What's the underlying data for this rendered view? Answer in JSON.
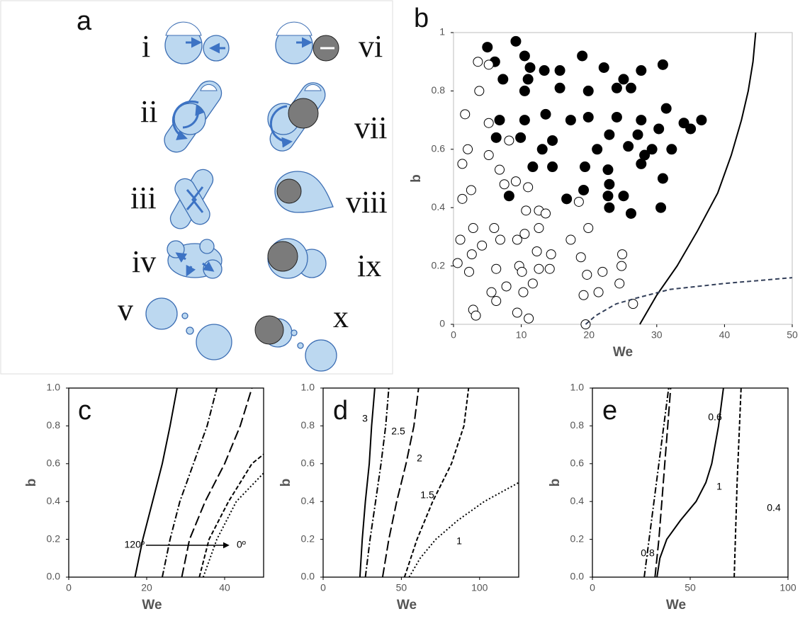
{
  "panel_a": {
    "label": "a",
    "items": [
      "i",
      "vi",
      "ii",
      "vii",
      "iii",
      "viii",
      "iv",
      "ix",
      "v",
      "x"
    ]
  },
  "chart_data": [
    {
      "type": "scatter",
      "panel": "b",
      "xlabel": "We",
      "ylabel": "b",
      "xlim": [
        0,
        50
      ],
      "xticks": [
        0,
        10,
        20,
        30,
        40,
        50
      ],
      "ylim": [
        0,
        1
      ],
      "yticks": [
        0,
        0.2,
        0.4,
        0.6,
        0.8,
        1
      ],
      "series": [
        {
          "marker": "filled",
          "color": "#000000",
          "x": [
            5.0,
            9.2,
            6.1,
            10.5,
            11.3,
            13.4,
            15.7,
            19.0,
            22.2,
            25.1,
            27.7,
            30.9,
            7.3,
            11.0,
            15.7,
            10.5,
            19.9,
            24.1,
            26.2,
            31.4,
            34.0,
            36.6,
            6.8,
            10.5,
            13.6,
            17.3,
            19.9,
            24.1,
            27.7,
            30.3,
            35.0,
            6.3,
            9.9,
            14.6,
            23.0,
            27.2,
            29.3,
            32.2,
            13.1,
            21.2,
            25.8,
            28.2,
            11.7,
            14.6,
            19.4,
            22.8,
            27.7,
            30.9,
            23.0,
            25.1,
            8.2,
            16.7,
            19.2,
            22.8,
            23.0,
            26.2,
            30.6
          ],
          "values": [
            0.95,
            0.97,
            0.9,
            0.92,
            0.88,
            0.87,
            0.87,
            0.92,
            0.88,
            0.84,
            0.87,
            0.89,
            0.84,
            0.84,
            0.81,
            0.8,
            0.8,
            0.81,
            0.81,
            0.74,
            0.69,
            0.7,
            0.7,
            0.7,
            0.72,
            0.7,
            0.71,
            0.71,
            0.7,
            0.67,
            0.67,
            0.64,
            0.64,
            0.63,
            0.65,
            0.65,
            0.6,
            0.6,
            0.6,
            0.6,
            0.61,
            0.58,
            0.54,
            0.54,
            0.54,
            0.53,
            0.55,
            0.5,
            0.48,
            0.44,
            0.44,
            0.43,
            0.46,
            0.44,
            0.4,
            0.38,
            0.4
          ]
        },
        {
          "marker": "open",
          "color": "#000000",
          "x": [
            3.6,
            5.2,
            3.8,
            1.7,
            5.2,
            2.1,
            1.3,
            5.2,
            6.8,
            8.2,
            1.3,
            2.6,
            7.5,
            9.2,
            11.0,
            10.7,
            12.6,
            13.6,
            18.5,
            19.9,
            12.6,
            10.5,
            9.4,
            6.0,
            2.9,
            1.0,
            4.2,
            2.7,
            6.9,
            12.3,
            14.4,
            17.3,
            14.2,
            12.6,
            9.7,
            10.1,
            7.8,
            10.3,
            0.6,
            2.3,
            6.3,
            11.7,
            18.8,
            22.0,
            24.9,
            24.8,
            19.7,
            19.2,
            21.4,
            24.5,
            5.6,
            6.3,
            2.9,
            3.3,
            9.4,
            11.1,
            26.5,
            19.5
          ],
          "values": [
            0.9,
            0.89,
            0.8,
            0.72,
            0.69,
            0.6,
            0.55,
            0.58,
            0.53,
            0.63,
            0.43,
            0.46,
            0.48,
            0.49,
            0.47,
            0.39,
            0.39,
            0.38,
            0.42,
            0.33,
            0.33,
            0.31,
            0.29,
            0.33,
            0.33,
            0.29,
            0.27,
            0.24,
            0.29,
            0.25,
            0.24,
            0.29,
            0.19,
            0.19,
            0.2,
            0.18,
            0.13,
            0.11,
            0.21,
            0.18,
            0.19,
            0.14,
            0.23,
            0.18,
            0.24,
            0.2,
            0.17,
            0.1,
            0.11,
            0.14,
            0.11,
            0.08,
            0.05,
            0.03,
            0.04,
            0.02,
            0.07,
            0.0
          ]
        },
        {
          "style": "solid",
          "color": "#000000",
          "x": [
            27.5,
            30,
            33,
            36,
            39,
            41,
            42.5,
            43.5,
            44.2,
            44.6
          ],
          "values": [
            0,
            0.1,
            0.2,
            0.32,
            0.45,
            0.58,
            0.7,
            0.8,
            0.9,
            1.0
          ]
        },
        {
          "style": "dashed",
          "color": "#34405a",
          "x": [
            19.5,
            21,
            24,
            27,
            32,
            40,
            50
          ],
          "values": [
            0,
            0.03,
            0.07,
            0.09,
            0.12,
            0.14,
            0.16
          ]
        }
      ]
    },
    {
      "type": "line",
      "panel": "c",
      "xlabel": "We",
      "ylabel": "b",
      "xlim": [
        0,
        50
      ],
      "xticks": [
        0,
        20,
        40
      ],
      "ylim": [
        0,
        1
      ],
      "yticks": [
        {
          "value": 0,
          "label": "0.0"
        },
        {
          "value": 0.2,
          "label": "0.2"
        },
        {
          "value": 0.4,
          "label": "0.4"
        },
        {
          "value": 0.6,
          "label": "0.6"
        },
        {
          "value": 0.8,
          "label": "0.8"
        },
        {
          "value": 1,
          "label": "1.0"
        }
      ],
      "annotations": [
        "120º",
        "0º"
      ],
      "series": [
        {
          "style": "solid",
          "color": "#000000",
          "x": [
            17,
            19,
            21.5,
            24,
            26,
            27.8
          ],
          "values": [
            0,
            0.2,
            0.4,
            0.6,
            0.8,
            1.0
          ]
        },
        {
          "style": "dash-dot",
          "color": "#000000",
          "x": [
            24,
            26,
            28.5,
            32,
            35.5,
            38
          ],
          "values": [
            0,
            0.2,
            0.4,
            0.6,
            0.8,
            1.0
          ]
        },
        {
          "style": "long-dash",
          "color": "#000000",
          "x": [
            29,
            31,
            35,
            40,
            44,
            47
          ],
          "values": [
            0,
            0.2,
            0.4,
            0.6,
            0.8,
            1.0
          ]
        },
        {
          "style": "short-dash",
          "color": "#000000",
          "x": [
            33.5,
            36,
            41,
            47,
            50
          ],
          "values": [
            0,
            0.2,
            0.4,
            0.6,
            0.65
          ]
        },
        {
          "style": "dotted",
          "color": "#000000",
          "x": [
            34.5,
            38,
            43,
            50
          ],
          "values": [
            0,
            0.2,
            0.4,
            0.55
          ]
        }
      ]
    },
    {
      "type": "line",
      "panel": "d",
      "xlabel": "We",
      "ylabel": "b",
      "xlim": [
        0,
        125
      ],
      "xticks": [
        0,
        50,
        100
      ],
      "ylim": [
        0,
        1
      ],
      "yticks": [
        {
          "value": 0,
          "label": "0.0"
        },
        {
          "value": 0.2,
          "label": "0.2"
        },
        {
          "value": 0.4,
          "label": "0.4"
        },
        {
          "value": 0.6,
          "label": "0.6"
        },
        {
          "value": 0.8,
          "label": "0.8"
        },
        {
          "value": 1,
          "label": "1.0"
        }
      ],
      "series": [
        {
          "name": "3",
          "style": "solid",
          "color": "#000000",
          "x": [
            23.5,
            25,
            27,
            29.5,
            31,
            33
          ],
          "values": [
            0,
            0.2,
            0.4,
            0.6,
            0.8,
            1.0
          ]
        },
        {
          "name": "2.5",
          "style": "dash-dot",
          "color": "#000000",
          "x": [
            27,
            30,
            33.5,
            37,
            40,
            42
          ],
          "values": [
            0,
            0.2,
            0.4,
            0.6,
            0.8,
            1.0
          ]
        },
        {
          "name": "2",
          "style": "long-dash",
          "color": "#000000",
          "x": [
            38,
            42,
            47,
            53,
            58,
            61
          ],
          "values": [
            0,
            0.2,
            0.4,
            0.6,
            0.8,
            1.0
          ]
        },
        {
          "name": "1.5",
          "style": "short-dash",
          "color": "#000000",
          "x": [
            52,
            60,
            70,
            82,
            90,
            93
          ],
          "values": [
            0,
            0.2,
            0.4,
            0.6,
            0.8,
            1.0
          ]
        },
        {
          "name": "1",
          "style": "dotted",
          "color": "#000000",
          "x": [
            55,
            62,
            72,
            86,
            103,
            125
          ],
          "values": [
            0,
            0.1,
            0.2,
            0.3,
            0.4,
            0.5
          ]
        }
      ]
    },
    {
      "type": "line",
      "panel": "e",
      "xlabel": "We",
      "ylabel": "b",
      "xlim": [
        0,
        100
      ],
      "xticks": [
        0,
        50,
        100
      ],
      "ylim": [
        0,
        1
      ],
      "yticks": [
        {
          "value": 0,
          "label": "0.0"
        },
        {
          "value": 0.2,
          "label": "0.2"
        },
        {
          "value": 0.4,
          "label": "0.4"
        },
        {
          "value": 0.6,
          "label": "0.6"
        },
        {
          "value": 0.8,
          "label": "0.8"
        },
        {
          "value": 1,
          "label": "1.0"
        }
      ],
      "series": [
        {
          "name": "0.6",
          "style": "long-dash",
          "color": "#000000",
          "x": [
            32,
            34,
            35.5,
            37,
            38.5,
            40
          ],
          "values": [
            0,
            0.2,
            0.4,
            0.6,
            0.8,
            1.0
          ]
        },
        {
          "name": "1",
          "style": "solid",
          "color": "#000000",
          "x": [
            33,
            34.5,
            38,
            45,
            53,
            58,
            61,
            64.5,
            67
          ],
          "values": [
            0,
            0.1,
            0.2,
            0.3,
            0.4,
            0.5,
            0.6,
            0.8,
            1.0
          ]
        },
        {
          "name": "0.4",
          "style": "short-dash",
          "color": "#000000",
          "x": [
            72.5,
            74,
            76
          ],
          "values": [
            0,
            0.5,
            1.0
          ]
        },
        {
          "name": "0.8",
          "style": "dash-dot",
          "color": "#000000",
          "x": [
            26.5,
            29,
            31.5,
            34,
            36.5,
            39
          ],
          "values": [
            0,
            0.2,
            0.4,
            0.6,
            0.8,
            1.0
          ]
        }
      ]
    }
  ]
}
